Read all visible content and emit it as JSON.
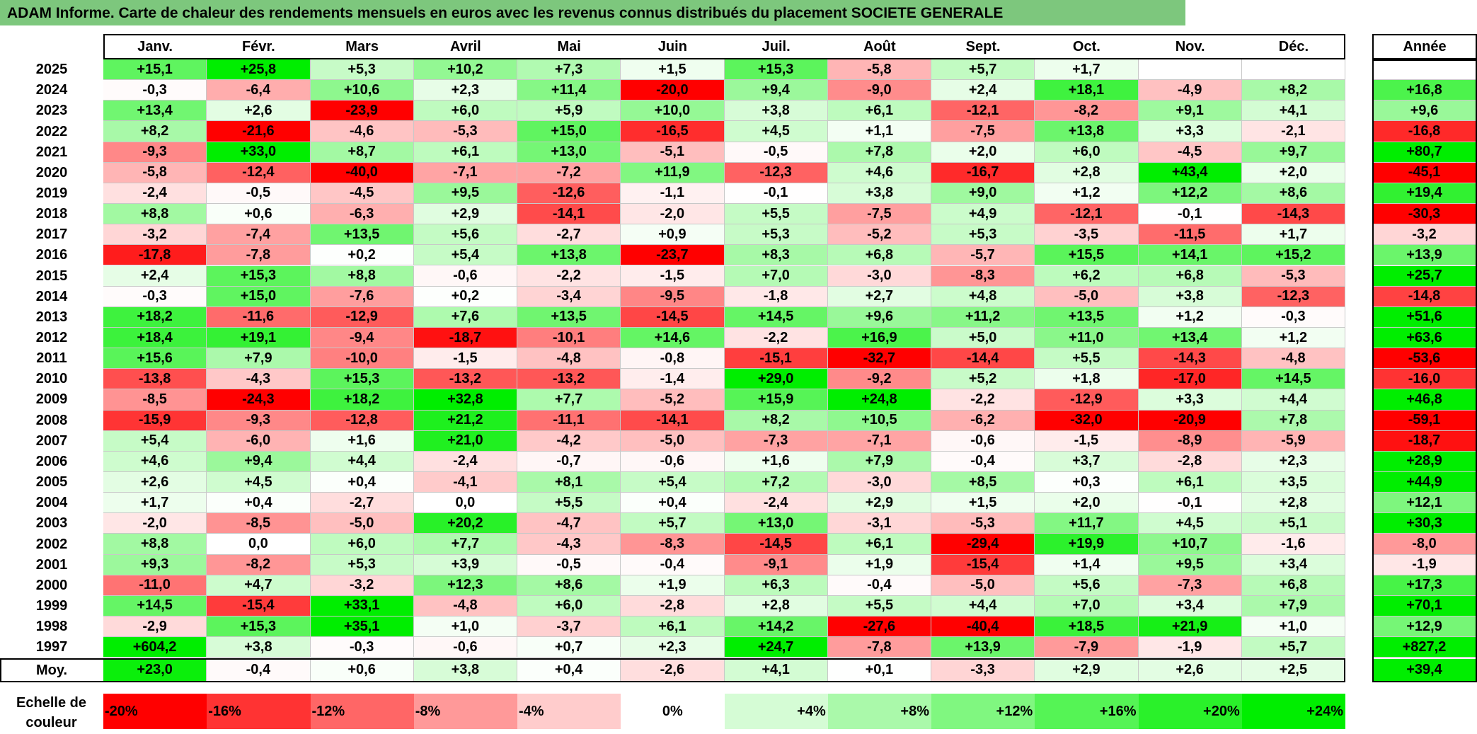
{
  "title": "ADAM Informe. Carte de chaleur des rendements mensuels en euros avec les revenus connus distribués du placement SOCIETE GENERALE",
  "chart_data": {
    "type": "heatmap",
    "title": "ADAM Informe. Carte de chaleur des rendements mensuels en euros avec les revenus connus distribués du placement SOCIETE GENERALE",
    "columns": [
      "Janv.",
      "Févr.",
      "Mars",
      "Avril",
      "Mai",
      "Juin",
      "Juil.",
      "Août",
      "Sept.",
      "Oct.",
      "Nov.",
      "Déc."
    ],
    "annual_label": "Année",
    "rows": [
      {
        "year": "2025",
        "values": [
          "+15,1",
          "+25,8",
          "+5,3",
          "+10,2",
          "+7,3",
          "+1,5",
          "+15,3",
          "-5,8",
          "+5,7",
          "+1,7",
          "",
          ""
        ],
        "annual": ""
      },
      {
        "year": "2024",
        "values": [
          "-0,3",
          "-6,4",
          "+10,6",
          "+2,3",
          "+11,4",
          "-20,0",
          "+9,4",
          "-9,0",
          "+2,4",
          "+18,1",
          "-4,9",
          "+8,2"
        ],
        "annual": "+16,8"
      },
      {
        "year": "2023",
        "values": [
          "+13,4",
          "+2,6",
          "-23,9",
          "+6,0",
          "+5,9",
          "+10,0",
          "+3,8",
          "+6,1",
          "-12,1",
          "-8,2",
          "+9,1",
          "+4,1"
        ],
        "annual": "+9,6"
      },
      {
        "year": "2022",
        "values": [
          "+8,2",
          "-21,6",
          "-4,6",
          "-5,3",
          "+15,0",
          "-16,5",
          "+4,5",
          "+1,1",
          "-7,5",
          "+13,8",
          "+3,3",
          "-2,1"
        ],
        "annual": "-16,8"
      },
      {
        "year": "2021",
        "values": [
          "-9,3",
          "+33,0",
          "+8,7",
          "+6,1",
          "+13,0",
          "-5,1",
          "-0,5",
          "+7,8",
          "+2,0",
          "+6,0",
          "-4,5",
          "+9,7"
        ],
        "annual": "+80,7"
      },
      {
        "year": "2020",
        "values": [
          "-5,8",
          "-12,4",
          "-40,0",
          "-7,1",
          "-7,2",
          "+11,9",
          "-12,3",
          "+4,6",
          "-16,7",
          "+2,8",
          "+43,4",
          "+2,0"
        ],
        "annual": "-45,1"
      },
      {
        "year": "2019",
        "values": [
          "-2,4",
          "-0,5",
          "-4,5",
          "+9,5",
          "-12,6",
          "-1,1",
          "-0,1",
          "+3,8",
          "+9,0",
          "+1,2",
          "+12,2",
          "+8,6"
        ],
        "annual": "+19,4"
      },
      {
        "year": "2018",
        "values": [
          "+8,8",
          "+0,6",
          "-6,3",
          "+2,9",
          "-14,1",
          "-2,0",
          "+5,5",
          "-7,5",
          "+4,9",
          "-12,1",
          "-0,1",
          "-14,3"
        ],
        "annual": "-30,3"
      },
      {
        "year": "2017",
        "values": [
          "-3,2",
          "-7,4",
          "+13,5",
          "+5,6",
          "-2,7",
          "+0,9",
          "+5,3",
          "-5,2",
          "+5,3",
          "-3,5",
          "-11,5",
          "+1,7"
        ],
        "annual": "-3,2"
      },
      {
        "year": "2016",
        "values": [
          "-17,8",
          "-7,8",
          "+0,2",
          "+5,4",
          "+13,8",
          "-23,7",
          "+8,3",
          "+6,8",
          "-5,7",
          "+15,5",
          "+14,1",
          "+15,2"
        ],
        "annual": "+13,9"
      },
      {
        "year": "2015",
        "values": [
          "+2,4",
          "+15,3",
          "+8,8",
          "-0,6",
          "-2,2",
          "-1,5",
          "+7,0",
          "-3,0",
          "-8,3",
          "+6,2",
          "+6,8",
          "-5,3"
        ],
        "annual": "+25,7"
      },
      {
        "year": "2014",
        "values": [
          "-0,3",
          "+15,0",
          "-7,6",
          "+0,2",
          "-3,4",
          "-9,5",
          "-1,8",
          "+2,7",
          "+4,8",
          "-5,0",
          "+3,8",
          "-12,3"
        ],
        "annual": "-14,8"
      },
      {
        "year": "2013",
        "values": [
          "+18,2",
          "-11,6",
          "-12,9",
          "+7,6",
          "+13,5",
          "-14,5",
          "+14,5",
          "+9,6",
          "+11,2",
          "+13,5",
          "+1,2",
          "-0,3"
        ],
        "annual": "+51,6"
      },
      {
        "year": "2012",
        "values": [
          "+18,4",
          "+19,1",
          "-9,4",
          "-18,7",
          "-10,1",
          "+14,6",
          "-2,2",
          "+16,9",
          "+5,0",
          "+11,0",
          "+13,4",
          "+1,2"
        ],
        "annual": "+63,6"
      },
      {
        "year": "2011",
        "values": [
          "+15,6",
          "+7,9",
          "-10,0",
          "-1,5",
          "-4,8",
          "-0,8",
          "-15,1",
          "-32,7",
          "-14,4",
          "+5,5",
          "-14,3",
          "-4,8"
        ],
        "annual": "-53,6"
      },
      {
        "year": "2010",
        "values": [
          "-13,8",
          "-4,3",
          "+15,3",
          "-13,2",
          "-13,2",
          "-1,4",
          "+29,0",
          "-9,2",
          "+5,2",
          "+1,8",
          "-17,0",
          "+14,5"
        ],
        "annual": "-16,0"
      },
      {
        "year": "2009",
        "values": [
          "-8,5",
          "-24,3",
          "+18,2",
          "+32,8",
          "+7,7",
          "-5,2",
          "+15,9",
          "+24,8",
          "-2,2",
          "-12,9",
          "+3,3",
          "+4,4"
        ],
        "annual": "+46,8"
      },
      {
        "year": "2008",
        "values": [
          "-15,9",
          "-9,3",
          "-12,8",
          "+21,2",
          "-11,1",
          "-14,1",
          "+8,2",
          "+10,5",
          "-6,2",
          "-32,0",
          "-20,9",
          "+7,8"
        ],
        "annual": "-59,1"
      },
      {
        "year": "2007",
        "values": [
          "+5,4",
          "-6,0",
          "+1,6",
          "+21,0",
          "-4,2",
          "-5,0",
          "-7,3",
          "-7,1",
          "-0,6",
          "-1,5",
          "-8,9",
          "-5,9"
        ],
        "annual": "-18,7"
      },
      {
        "year": "2006",
        "values": [
          "+4,6",
          "+9,4",
          "+4,4",
          "-2,4",
          "-0,7",
          "-0,6",
          "+1,6",
          "+7,9",
          "-0,4",
          "+3,7",
          "-2,8",
          "+2,3"
        ],
        "annual": "+28,9"
      },
      {
        "year": "2005",
        "values": [
          "+2,6",
          "+4,5",
          "+0,4",
          "-4,1",
          "+8,1",
          "+5,4",
          "+7,2",
          "-3,0",
          "+8,5",
          "+0,3",
          "+6,1",
          "+3,5"
        ],
        "annual": "+44,9"
      },
      {
        "year": "2004",
        "values": [
          "+1,7",
          "+0,4",
          "-2,7",
          "0,0",
          "+5,5",
          "+0,4",
          "-2,4",
          "+2,9",
          "+1,5",
          "+2,0",
          "-0,1",
          "+2,8"
        ],
        "annual": "+12,1"
      },
      {
        "year": "2003",
        "values": [
          "-2,0",
          "-8,5",
          "-5,0",
          "+20,2",
          "-4,7",
          "+5,7",
          "+13,0",
          "-3,1",
          "-5,3",
          "+11,7",
          "+4,5",
          "+5,1"
        ],
        "annual": "+30,3"
      },
      {
        "year": "2002",
        "values": [
          "+8,8",
          "0,0",
          "+6,0",
          "+7,7",
          "-4,3",
          "-8,3",
          "-14,5",
          "+6,1",
          "-29,4",
          "+19,9",
          "+10,7",
          "-1,6"
        ],
        "annual": "-8,0"
      },
      {
        "year": "2001",
        "values": [
          "+9,3",
          "-8,2",
          "+5,3",
          "+3,9",
          "-0,5",
          "-0,4",
          "-9,1",
          "+1,9",
          "-15,4",
          "+1,4",
          "+9,5",
          "+3,4"
        ],
        "annual": "-1,9"
      },
      {
        "year": "2000",
        "values": [
          "-11,0",
          "+4,7",
          "-3,2",
          "+12,3",
          "+8,6",
          "+1,9",
          "+6,3",
          "-0,4",
          "-5,0",
          "+5,6",
          "-7,3",
          "+6,8"
        ],
        "annual": "+17,3"
      },
      {
        "year": "1999",
        "values": [
          "+14,5",
          "-15,4",
          "+33,1",
          "-4,8",
          "+6,0",
          "-2,8",
          "+2,8",
          "+5,5",
          "+4,4",
          "+7,0",
          "+3,4",
          "+7,9"
        ],
        "annual": "+70,1"
      },
      {
        "year": "1998",
        "values": [
          "-2,9",
          "+15,3",
          "+35,1",
          "+1,0",
          "-3,7",
          "+6,1",
          "+14,2",
          "-27,6",
          "-40,4",
          "+18,5",
          "+21,9",
          "+1,0"
        ],
        "annual": "+12,9"
      },
      {
        "year": "1997",
        "values": [
          "+604,2",
          "+3,8",
          "-0,3",
          "-0,6",
          "+0,7",
          "+2,3",
          "+24,7",
          "-7,8",
          "+13,9",
          "-7,9",
          "-1,9",
          "+5,7"
        ],
        "annual": "+827,2"
      }
    ],
    "average": {
      "label": "Moy.",
      "values": [
        "+23,0",
        "-0,4",
        "+0,6",
        "+3,8",
        "+0,4",
        "-2,6",
        "+4,1",
        "+0,1",
        "-3,3",
        "+2,9",
        "+2,6",
        "+2,5"
      ],
      "annual": "+39,4"
    },
    "scale": {
      "label_line1": "Echelle de",
      "label_line2": "couleur",
      "steps": [
        "-20%",
        "-16%",
        "-12%",
        "-8%",
        "-4%",
        "0%",
        "+4%",
        "+8%",
        "+12%",
        "+16%",
        "+20%",
        "+24%"
      ],
      "step_values": [
        -20,
        -16,
        -12,
        -8,
        -4,
        0,
        4,
        8,
        12,
        16,
        20,
        24
      ]
    },
    "colors": {
      "negative_max": "#ff0000",
      "neutral": "#ffffff",
      "positive_max": "#00ee00",
      "title_bar": "#7dc77d"
    }
  }
}
